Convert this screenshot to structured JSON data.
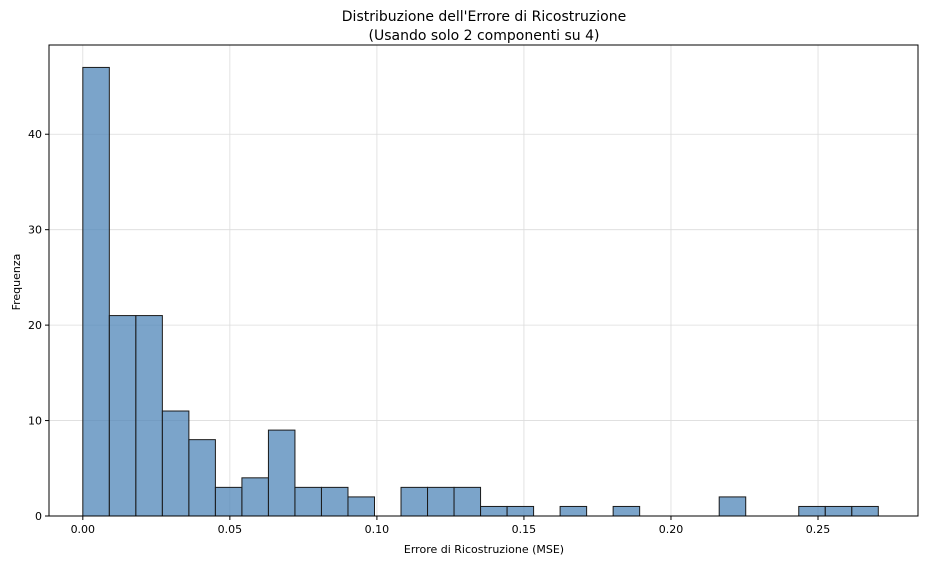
{
  "chart_data": {
    "type": "bar",
    "title": "Distribuzione dell'Errore di Ricostruzione",
    "subtitle": "(Usando solo 2 componenti su 4)",
    "xlabel": "Errore di Ricostruzione (MSE)",
    "ylabel": "Frequenza",
    "xlim": [
      -0.0115,
      0.284
    ],
    "ylim": [
      0,
      49.35
    ],
    "grid": true,
    "bar_color": "#4f86b8",
    "bar_alpha": 0.75,
    "edge_color": "#1a1a1a",
    "xticks": [
      0.0,
      0.05,
      0.1,
      0.15,
      0.2,
      0.25
    ],
    "xtick_labels": [
      "0.00",
      "0.05",
      "0.10",
      "0.15",
      "0.20",
      "0.25"
    ],
    "yticks": [
      0,
      10,
      20,
      30,
      40
    ],
    "ytick_labels": [
      "0",
      "10",
      "20",
      "30",
      "40"
    ],
    "bin_start": 0.0,
    "bin_end": 0.2705,
    "bins": 30,
    "values": [
      47,
      21,
      21,
      11,
      8,
      3,
      4,
      9,
      3,
      3,
      2,
      0,
      3,
      3,
      3,
      1,
      1,
      0,
      1,
      0,
      1,
      0,
      0,
      0,
      2,
      0,
      0,
      1,
      1,
      1
    ]
  }
}
